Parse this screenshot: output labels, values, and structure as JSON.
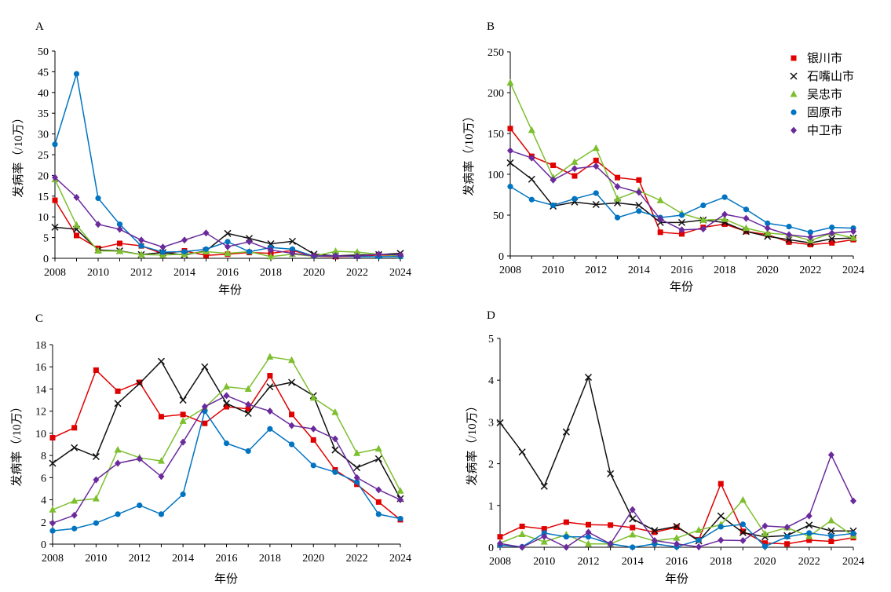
{
  "series_meta": [
    {
      "name": "银川市",
      "color": "#e00000",
      "marker": "square"
    },
    {
      "name": "石嘴山市",
      "color": "#111111",
      "marker": "x"
    },
    {
      "name": "吴忠市",
      "color": "#7dbf2e",
      "marker": "triangle"
    },
    {
      "name": "固原市",
      "color": "#0074c1",
      "marker": "circle"
    },
    {
      "name": "中卫市",
      "color": "#6a2a9c",
      "marker": "diamond"
    }
  ],
  "chart_data": [
    {
      "type": "line",
      "panel": "A",
      "xlabel": "年份",
      "ylabel": "发病率（/10万）",
      "x": [
        2008,
        2009,
        2010,
        2011,
        2012,
        2013,
        2014,
        2015,
        2016,
        2017,
        2018,
        2019,
        2020,
        2021,
        2022,
        2023,
        2024
      ],
      "xticks": [
        "2008",
        "2010",
        "2012",
        "2014",
        "2016",
        "2018",
        "2020",
        "2022",
        "2024"
      ],
      "ylim": [
        0,
        50
      ],
      "yticks": [
        "0",
        "5",
        "10",
        "15",
        "20",
        "25",
        "30",
        "35",
        "40",
        "45",
        "50"
      ],
      "legend": "",
      "series": [
        {
          "name": "银川市",
          "values": [
            14.0,
            5.5,
            2.4,
            3.6,
            3.0,
            1.1,
            1.8,
            0.7,
            1.0,
            1.4,
            1.2,
            1.9,
            0.5,
            0.4,
            0.5,
            0.8,
            0.6
          ]
        },
        {
          "name": "石嘴山市",
          "values": [
            7.5,
            7.0,
            2.0,
            1.8,
            0.9,
            1.4,
            0.8,
            1.8,
            6.0,
            4.8,
            3.5,
            4.1,
            1.0,
            0.6,
            0.8,
            0.9,
            1.2
          ]
        },
        {
          "name": "吴忠市",
          "values": [
            19.0,
            8.0,
            1.8,
            1.7,
            0.9,
            0.8,
            1.0,
            1.6,
            1.2,
            1.6,
            0.4,
            1.0,
            0.5,
            1.7,
            1.5,
            1.0,
            0.5
          ]
        },
        {
          "name": "固原市",
          "values": [
            27.5,
            44.5,
            14.5,
            8.2,
            3.0,
            1.5,
            1.6,
            2.2,
            4.0,
            1.6,
            2.6,
            2.2,
            0.5,
            0.6,
            0.4,
            0.4,
            0.4
          ]
        },
        {
          "name": "中卫市",
          "values": [
            19.5,
            14.7,
            8.2,
            7.0,
            4.4,
            2.7,
            4.4,
            6.1,
            2.8,
            4.0,
            2.0,
            1.2,
            0.6,
            0.6,
            0.5,
            1.0,
            0.8
          ]
        }
      ]
    },
    {
      "type": "line",
      "panel": "B",
      "xlabel": "年份",
      "ylabel": "发病率（/10万）",
      "x": [
        2008,
        2009,
        2010,
        2011,
        2012,
        2013,
        2014,
        2015,
        2016,
        2017,
        2018,
        2019,
        2020,
        2021,
        2022,
        2023,
        2024
      ],
      "xticks": [
        "2008",
        "2010",
        "2012",
        "2014",
        "2016",
        "2018",
        "2020",
        "2022",
        "2024"
      ],
      "ylim": [
        0,
        250
      ],
      "yticks": [
        "0",
        "50",
        "100",
        "150",
        "200",
        "250"
      ],
      "legend": "top-right",
      "series": [
        {
          "name": "银川市",
          "values": [
            156,
            122,
            111,
            98,
            117,
            96,
            93,
            29,
            27,
            35,
            39,
            30,
            26,
            17,
            14,
            16,
            20
          ]
        },
        {
          "name": "石嘴山市",
          "values": [
            114,
            94,
            61,
            66,
            63,
            65,
            62,
            41,
            41,
            44,
            41,
            30,
            24,
            20,
            16,
            21,
            22
          ]
        },
        {
          "name": "吴忠市",
          "values": [
            212,
            154,
            96,
            115,
            132,
            70,
            80,
            68,
            52,
            44,
            45,
            34,
            28,
            26,
            19,
            28,
            22
          ]
        },
        {
          "name": "固原市",
          "values": [
            85,
            69,
            62,
            70,
            77,
            47,
            55,
            47,
            50,
            62,
            72,
            57,
            40,
            36,
            29,
            35,
            34
          ]
        },
        {
          "name": "中卫市",
          "values": [
            129,
            120,
            93,
            107,
            110,
            85,
            78,
            45,
            32,
            33,
            51,
            46,
            34,
            26,
            23,
            28,
            30
          ]
        }
      ]
    },
    {
      "type": "line",
      "panel": "C",
      "xlabel": "年份",
      "ylabel": "发病率（/10万）",
      "x": [
        2008,
        2009,
        2010,
        2011,
        2012,
        2013,
        2014,
        2015,
        2016,
        2017,
        2018,
        2019,
        2020,
        2021,
        2022,
        2023,
        2024
      ],
      "xticks": [
        "2008",
        "2010",
        "2012",
        "2014",
        "2016",
        "2018",
        "2020",
        "2022",
        "2024"
      ],
      "ylim": [
        0,
        18
      ],
      "yticks": [
        "0",
        "2",
        "4",
        "6",
        "8",
        "10",
        "12",
        "14",
        "16",
        "18"
      ],
      "legend": "",
      "series": [
        {
          "name": "银川市",
          "values": [
            9.6,
            10.5,
            15.7,
            13.8,
            14.6,
            11.5,
            11.7,
            10.9,
            12.4,
            12.2,
            15.2,
            11.7,
            9.4,
            6.7,
            5.4,
            3.8,
            2.2
          ]
        },
        {
          "name": "石嘴山市",
          "values": [
            7.3,
            8.7,
            7.9,
            12.7,
            14.5,
            16.5,
            13.0,
            16.0,
            12.7,
            11.8,
            14.2,
            14.6,
            13.4,
            8.5,
            6.9,
            7.7,
            4.1
          ]
        },
        {
          "name": "吴忠市",
          "values": [
            3.1,
            3.9,
            4.1,
            8.5,
            7.8,
            7.5,
            11.1,
            12.3,
            14.2,
            14.0,
            16.9,
            16.6,
            13.2,
            11.9,
            8.2,
            8.6,
            4.8
          ]
        },
        {
          "name": "固原市",
          "values": [
            1.2,
            1.4,
            1.9,
            2.7,
            3.5,
            2.7,
            4.5,
            12.0,
            9.1,
            8.4,
            10.4,
            9.0,
            7.1,
            6.5,
            5.6,
            2.7,
            2.3
          ]
        },
        {
          "name": "中卫市",
          "values": [
            1.9,
            2.6,
            5.8,
            7.3,
            7.7,
            6.1,
            9.2,
            12.4,
            13.4,
            12.6,
            12.0,
            10.7,
            10.4,
            9.5,
            6.0,
            4.9,
            4.0
          ]
        }
      ]
    },
    {
      "type": "line",
      "panel": "D",
      "xlabel": "年份",
      "ylabel": "发病率（/10万）",
      "x": [
        2008,
        2009,
        2010,
        2011,
        2012,
        2013,
        2014,
        2015,
        2016,
        2017,
        2018,
        2019,
        2020,
        2021,
        2022,
        2023,
        2024
      ],
      "xticks": [
        "2008",
        "2010",
        "2012",
        "2014",
        "2016",
        "2018",
        "2020",
        "2022",
        "2024"
      ],
      "ylim": [
        0,
        5
      ],
      "yticks": [
        "0",
        "1",
        "2",
        "3",
        "4",
        "5"
      ],
      "legend": "",
      "series": [
        {
          "name": "银川市",
          "values": [
            0.25,
            0.5,
            0.44,
            0.6,
            0.54,
            0.53,
            0.47,
            0.36,
            0.48,
            0.18,
            1.52,
            0.38,
            0.1,
            0.08,
            0.17,
            0.14,
            0.23
          ]
        },
        {
          "name": "石嘴山市",
          "values": [
            2.98,
            2.28,
            1.46,
            2.76,
            4.07,
            1.76,
            0.68,
            0.4,
            0.5,
            0.15,
            0.75,
            0.35,
            0.25,
            0.28,
            0.53,
            0.39,
            0.39
          ]
        },
        {
          "name": "吴忠市",
          "values": [
            0.1,
            0.31,
            0.13,
            0.3,
            0.08,
            0.08,
            0.3,
            0.15,
            0.22,
            0.41,
            0.54,
            1.13,
            0.32,
            0.47,
            0.26,
            0.64,
            0.27
          ]
        },
        {
          "name": "固原市",
          "values": [
            0.05,
            0.01,
            0.34,
            0.25,
            0.25,
            0.08,
            0.0,
            0.08,
            0.01,
            0.17,
            0.49,
            0.55,
            0.02,
            0.25,
            0.34,
            0.27,
            0.33
          ]
        },
        {
          "name": "中卫市",
          "values": [
            0.09,
            0.0,
            0.26,
            0.0,
            0.36,
            0.08,
            0.9,
            0.16,
            0.08,
            0.01,
            0.17,
            0.16,
            0.51,
            0.48,
            0.75,
            2.21,
            1.11
          ]
        }
      ]
    }
  ]
}
